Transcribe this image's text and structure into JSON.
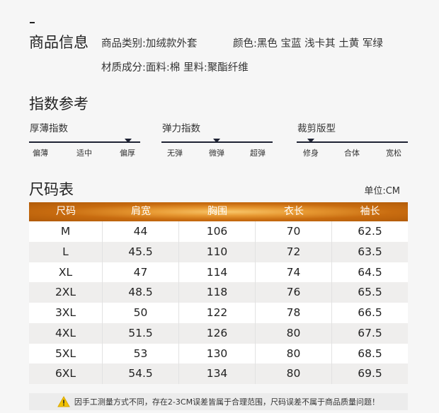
{
  "info": {
    "title": "商品信息",
    "category": "商品类别:加绒款外套",
    "colors": "颜色:黑色 宝蓝 浅卡其 土黄 军绿",
    "material": "材质成分:面料:棉   里料:聚酯纤维"
  },
  "index": {
    "title": "指数参考",
    "gauges": [
      {
        "label": "厚薄指数",
        "options": [
          "偏薄",
          "适中",
          "偏厚"
        ],
        "selected": "偏厚"
      },
      {
        "label": "弹力指数",
        "options": [
          "无弹",
          "微弹",
          "超弹"
        ],
        "selected": "微弹"
      },
      {
        "label": "裁剪版型",
        "options": [
          "修身",
          "合体",
          "宽松"
        ],
        "selected": "修身"
      }
    ]
  },
  "size_chart": {
    "title": "尺码表",
    "unit": "单位:CM",
    "headers": [
      "尺码",
      "肩宽",
      "胸围",
      "衣长",
      "袖长"
    ],
    "rows": [
      [
        "M",
        "44",
        "106",
        "70",
        "62.5"
      ],
      [
        "L",
        "45.5",
        "110",
        "72",
        "63.5"
      ],
      [
        "XL",
        "47",
        "114",
        "74",
        "64.5"
      ],
      [
        "2XL",
        "48.5",
        "118",
        "76",
        "65.5"
      ],
      [
        "3XL",
        "50",
        "122",
        "78",
        "66.5"
      ],
      [
        "4XL",
        "51.5",
        "126",
        "80",
        "67.5"
      ],
      [
        "5XL",
        "53",
        "130",
        "80",
        "68.5"
      ],
      [
        "6XL",
        "54.5",
        "134",
        "80",
        "69.5"
      ]
    ]
  },
  "note": {
    "icon": "warning-icon",
    "text": "因手工测量方式不同，存在2-3CM误差皆属于合理范围，尺码误差不属于商品质量问题！"
  },
  "colors": {
    "header_gradient_center": "#f8c66a",
    "header_gradient_edge": "#b05a08",
    "gauge_line": "#1e2233"
  }
}
